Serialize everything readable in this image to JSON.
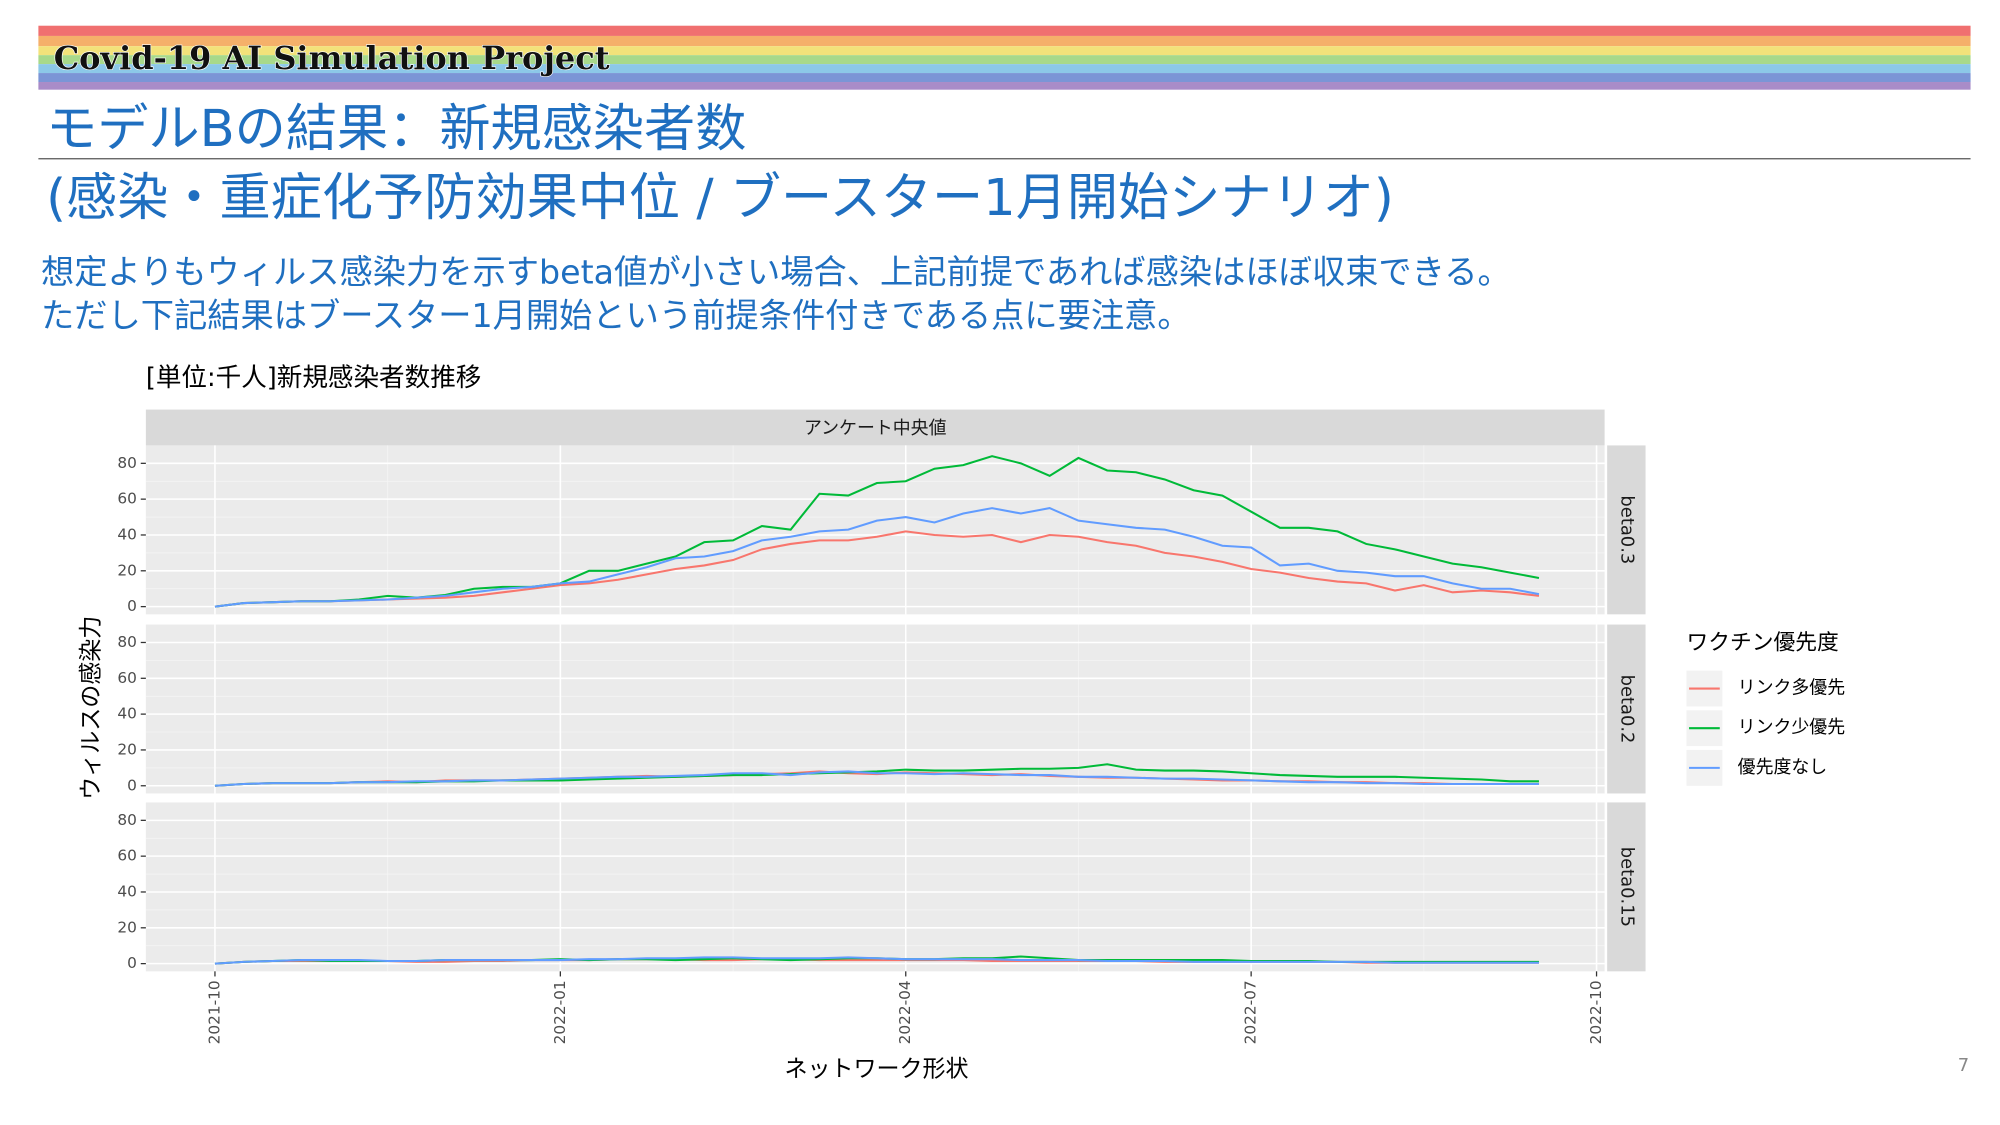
{
  "header": {
    "banner": "Covid-19 AI Simulation Project",
    "title_lines": [
      "モデルBの結果：新規感染者数",
      "(感染・重症化予防効果中位 / ブースター1月開始シナリオ)"
    ],
    "lead_lines": [
      "想定よりもウィルス感染力を示すbeta値が小さい場合、上記前提であれば感染はほぼ収束できる。",
      "ただし下記結果はブースター1月開始という前提条件付きである点に要注意。"
    ]
  },
  "page_number": "7",
  "chart_data": {
    "type": "line",
    "title": "[単位:千人]新規感染者数推移",
    "strip": "アンケート中央値",
    "x_label": "ネットワーク形状",
    "y_label": "ウィルスの感染力",
    "legend_title": "ワクチン優先度",
    "xlim": [
      -0.6,
      12.07
    ],
    "xticks": [
      {
        "value": 0,
        "label": "2021-10"
      },
      {
        "value": 3,
        "label": "2022-01"
      },
      {
        "value": 6,
        "label": "2022-04"
      },
      {
        "value": 9,
        "label": "2022-07"
      },
      {
        "value": 12,
        "label": "2022-10"
      }
    ],
    "ylim": [
      -4.3,
      90
    ],
    "yticks": [
      0,
      20,
      40,
      60,
      80
    ],
    "grid": true,
    "x": [
      0,
      0.25,
      0.5,
      0.75,
      1,
      1.25,
      1.5,
      1.75,
      2,
      2.25,
      2.5,
      2.75,
      3,
      3.25,
      3.5,
      3.75,
      4,
      4.25,
      4.5,
      4.75,
      5,
      5.25,
      5.5,
      5.75,
      6,
      6.25,
      6.5,
      6.75,
      7,
      7.25,
      7.5,
      7.75,
      8,
      8.25,
      8.5,
      8.75,
      9,
      9.25,
      9.5,
      9.75,
      10,
      10.25,
      10.5,
      10.75,
      11,
      11.25,
      11.5
    ],
    "series": [
      {
        "name": "リンク多優先",
        "color": "#F8766D"
      },
      {
        "name": "リンク少優先",
        "color": "#00BA38"
      },
      {
        "name": "優先度なし",
        "color": "#619CFF"
      }
    ],
    "panels": [
      {
        "label": "beta0.3",
        "values": [
          [
            0,
            2,
            2.5,
            3,
            3,
            3.5,
            4,
            4.5,
            5,
            6,
            8,
            10,
            12,
            13,
            15,
            18,
            21,
            23,
            26,
            32,
            35,
            37,
            37,
            39,
            42,
            40,
            39,
            40,
            36,
            40,
            39,
            36,
            34,
            30,
            28,
            25,
            21,
            19,
            16,
            14,
            13,
            9,
            12,
            8,
            9,
            8,
            6
          ],
          [
            0,
            2,
            2.5,
            3,
            3,
            4,
            6,
            5,
            6.5,
            10,
            11,
            11,
            13,
            20,
            20,
            24,
            28,
            36,
            37,
            45,
            43,
            63,
            62,
            69,
            70,
            77,
            79,
            84,
            80,
            73,
            83,
            76,
            75,
            71,
            65,
            62,
            53,
            44,
            44,
            42,
            35,
            32,
            28,
            24,
            22,
            19,
            16
          ],
          [
            0,
            2,
            2.5,
            3,
            3,
            3.5,
            4,
            5,
            6,
            8,
            10,
            11,
            13,
            14,
            18,
            22,
            27,
            28,
            31,
            37,
            39,
            42,
            43,
            48,
            50,
            47,
            52,
            55,
            52,
            55,
            48,
            46,
            44,
            43,
            39,
            34,
            33,
            23,
            24,
            20,
            19,
            17,
            17,
            13,
            10,
            10,
            7
          ]
        ]
      },
      {
        "label": "beta0.2",
        "values": [
          [
            0,
            1,
            1.5,
            1.5,
            1.5,
            2,
            2.5,
            2,
            3,
            3,
            3,
            3.5,
            4,
            4.5,
            5,
            5.5,
            5,
            5.5,
            6,
            6.5,
            7,
            8,
            7,
            6.5,
            7.5,
            7,
            6.5,
            6,
            6.5,
            5.5,
            5,
            4.5,
            4.5,
            4,
            3.5,
            3,
            3,
            2.5,
            2.5,
            2,
            2,
            1.5,
            1.5,
            1,
            1,
            1,
            1
          ],
          [
            0,
            1,
            1.5,
            1.5,
            1.5,
            2,
            2,
            2,
            2.5,
            2.5,
            3,
            3,
            3,
            3.5,
            4,
            4.5,
            5,
            5.5,
            6,
            6,
            6.5,
            7,
            7.5,
            8,
            9,
            8.5,
            8.5,
            9,
            9.5,
            9.5,
            10,
            12,
            9,
            8.5,
            8.5,
            8,
            7,
            6,
            5.5,
            5,
            5,
            5,
            4.5,
            4,
            3.5,
            2.5,
            2.5
          ],
          [
            0,
            1,
            1.5,
            1.5,
            1.5,
            2,
            2,
            2.5,
            2.5,
            3,
            3,
            3.5,
            4,
            4.5,
            5,
            5,
            5.5,
            6,
            7,
            7,
            6,
            7.5,
            8,
            7,
            7,
            6.5,
            7,
            6.5,
            6,
            6,
            5,
            5,
            4.5,
            4,
            4,
            3.5,
            3,
            2.5,
            2,
            2,
            1.5,
            1.5,
            1,
            1,
            1,
            1,
            1
          ]
        ]
      },
      {
        "label": "beta0.15",
        "values": [
          [
            0,
            1,
            1.5,
            1.5,
            1.5,
            1.5,
            1.5,
            1,
            1,
            1.5,
            1.5,
            2,
            2,
            2,
            2.5,
            2.5,
            2.5,
            2,
            2,
            2.5,
            2.5,
            2,
            2,
            2,
            2,
            2,
            2,
            1.5,
            1.5,
            1.5,
            1.5,
            1.5,
            1.5,
            1,
            1,
            1,
            1,
            1,
            1,
            1,
            0.5,
            0.5,
            0.5,
            0.5,
            0.5,
            0.5,
            0.5
          ],
          [
            0,
            1,
            1.5,
            2,
            1.5,
            1.5,
            1.5,
            1.5,
            2,
            2,
            2,
            2,
            2.5,
            2,
            2.5,
            2.5,
            2,
            2.5,
            3,
            2.5,
            2,
            2.5,
            3,
            3,
            2.5,
            2.5,
            3,
            3,
            4,
            3,
            2,
            2,
            2,
            2,
            2,
            2,
            1.5,
            1.5,
            1.5,
            1,
            1,
            1,
            1,
            1,
            1,
            1,
            1
          ],
          [
            0,
            1,
            1.5,
            2,
            2,
            2,
            1.5,
            1.5,
            2,
            2,
            2,
            2,
            2,
            2.5,
            2.5,
            3,
            3,
            3.5,
            3.5,
            3,
            3,
            3,
            3.5,
            3,
            2.5,
            2.5,
            2.5,
            2.5,
            2,
            2,
            2,
            1.5,
            1.5,
            1.5,
            1,
            1,
            1,
            1,
            1,
            1,
            1,
            0.5,
            0.5,
            0.5,
            0.5,
            0.5,
            0.5
          ]
        ]
      }
    ]
  }
}
